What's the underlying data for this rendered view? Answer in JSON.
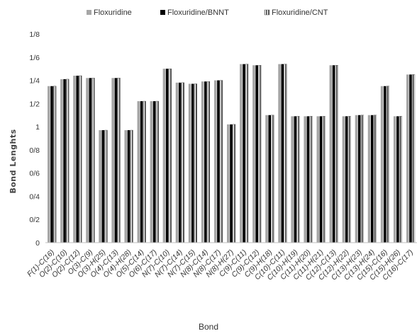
{
  "chart_data": {
    "type": "bar",
    "title": "",
    "xlabel": "Bond",
    "ylabel": "Bond Lenghts",
    "ylim": [
      0,
      1.8
    ],
    "y_ticks": [
      {
        "value": 0,
        "label": "0"
      },
      {
        "value": 0.2,
        "label": "0/2"
      },
      {
        "value": 0.4,
        "label": "0/4"
      },
      {
        "value": 0.6,
        "label": "0/6"
      },
      {
        "value": 0.8,
        "label": "0/8"
      },
      {
        "value": 1.0,
        "label": "1"
      },
      {
        "value": 1.2,
        "label": "1/2"
      },
      {
        "value": 1.4,
        "label": "1/4"
      },
      {
        "value": 1.6,
        "label": "1/6"
      },
      {
        "value": 1.8,
        "label": "1/8"
      }
    ],
    "grid": false,
    "legend_position": "top",
    "categories": [
      "F(1)-C(16)",
      "O(2)-C(10)",
      "O(2)-C(12)",
      "O(3)-C(9)",
      "O(3)-H(25)",
      "O(4)-C(13)",
      "O(4)-H(28)",
      "O(5)-C(14)",
      "O(6)-C(17)",
      "N(7)-C(10)",
      "N(7)-C(14)",
      "N(7)-C(15)",
      "N(8)-C(14)",
      "N(8)-C(17)",
      "N(8)-H(27)",
      "C(9)-C(11)",
      "C(9)-C(12)",
      "C(9)-H(18)",
      "C(10)-C(11)",
      "C(10)-H(19)",
      "C(11)-H(20)",
      "C(11)-H(21)",
      "C(12)-C(13)",
      "C(12)-H(22)",
      "C(13)-H(23)",
      "C(13)-H(24)",
      "C(15)-C(16)",
      "C(15)-H(26)",
      "C(16)-C(17)"
    ],
    "series": [
      {
        "name": "Floxuridine",
        "color": "#a6a6a6",
        "values": [
          1.35,
          1.41,
          1.44,
          1.42,
          0.97,
          1.42,
          0.97,
          1.22,
          1.22,
          1.5,
          1.38,
          1.37,
          1.39,
          1.4,
          1.02,
          1.54,
          1.53,
          1.1,
          1.54,
          1.09,
          1.09,
          1.09,
          1.53,
          1.09,
          1.1,
          1.1,
          1.35,
          1.09,
          1.45
        ]
      },
      {
        "name": "Floxuridine/BNNT",
        "color": "#000000",
        "values": [
          1.35,
          1.41,
          1.44,
          1.42,
          0.97,
          1.42,
          0.97,
          1.22,
          1.22,
          1.5,
          1.38,
          1.37,
          1.39,
          1.4,
          1.02,
          1.54,
          1.53,
          1.1,
          1.54,
          1.09,
          1.09,
          1.09,
          1.53,
          1.09,
          1.1,
          1.1,
          1.35,
          1.09,
          1.45
        ]
      },
      {
        "name": "Floxuridine/CNT",
        "color": "#555555",
        "values": [
          1.35,
          1.41,
          1.44,
          1.42,
          0.97,
          1.42,
          0.97,
          1.22,
          1.22,
          1.5,
          1.38,
          1.37,
          1.39,
          1.4,
          1.02,
          1.54,
          1.53,
          1.1,
          1.54,
          1.09,
          1.09,
          1.09,
          1.53,
          1.09,
          1.1,
          1.1,
          1.35,
          1.09,
          1.45
        ]
      }
    ]
  }
}
